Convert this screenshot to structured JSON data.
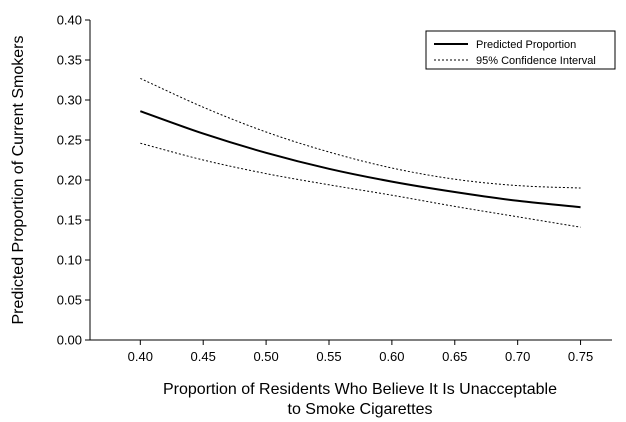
{
  "chart_data": {
    "type": "line",
    "title": "",
    "xlabel_lines": [
      "Proportion of Residents Who Believe It Is Unacceptable",
      "to Smoke Cigarettes"
    ],
    "ylabel": "Predicted Proportion of Current Smokers",
    "xlim": [
      0.36,
      0.775
    ],
    "ylim": [
      0,
      0.4
    ],
    "x_ticks": [
      "0.40",
      "0.45",
      "0.50",
      "0.55",
      "0.60",
      "0.65",
      "0.70",
      "0.75"
    ],
    "y_ticks": [
      "0.00",
      "0.05",
      "0.10",
      "0.15",
      "0.20",
      "0.25",
      "0.30",
      "0.35",
      "0.40"
    ],
    "grid": false,
    "legend_position": "top-right",
    "colors": {
      "line": "#000000",
      "axis": "#000000"
    },
    "x": [
      0.4,
      0.45,
      0.5,
      0.55,
      0.6,
      0.65,
      0.7,
      0.75
    ],
    "series": [
      {
        "name": "Predicted Proportion",
        "style": "solid",
        "values": [
          0.286,
          0.258,
          0.234,
          0.214,
          0.198,
          0.185,
          0.174,
          0.166
        ]
      },
      {
        "name": "95% Confidence Interval",
        "style": "dotted",
        "values": [
          0.327,
          0.291,
          0.26,
          0.235,
          0.215,
          0.201,
          0.193,
          0.19
        ]
      },
      {
        "name": "",
        "style": "dotted",
        "values": [
          0.246,
          0.225,
          0.208,
          0.194,
          0.181,
          0.167,
          0.154,
          0.141
        ]
      }
    ]
  }
}
